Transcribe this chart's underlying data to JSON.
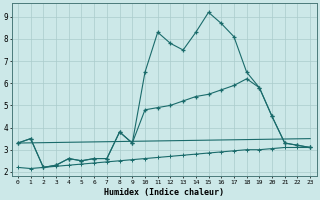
{
  "background_color": "#cce8e8",
  "grid_color": "#aacccc",
  "line_color": "#1a6b6b",
  "xlabel": "Humidex (Indice chaleur)",
  "xlim": [
    -0.5,
    23.5
  ],
  "ylim": [
    1.8,
    9.6
  ],
  "yticks": [
    2,
    3,
    4,
    5,
    6,
    7,
    8,
    9
  ],
  "xticks": [
    0,
    1,
    2,
    3,
    4,
    5,
    6,
    7,
    8,
    9,
    10,
    11,
    12,
    13,
    14,
    15,
    16,
    17,
    18,
    19,
    20,
    21,
    22,
    23
  ],
  "series1_x": [
    0,
    1,
    2,
    3,
    4,
    5,
    6,
    7,
    8,
    9,
    10,
    11,
    12,
    13,
    14,
    15,
    16,
    17,
    18,
    19,
    20,
    21,
    22,
    23
  ],
  "series1_y": [
    3.3,
    3.5,
    2.2,
    2.3,
    2.6,
    2.5,
    2.6,
    2.6,
    3.8,
    3.3,
    6.5,
    8.3,
    7.8,
    7.5,
    8.3,
    9.2,
    8.7,
    8.1,
    6.5,
    5.8,
    4.5,
    3.3,
    3.2,
    3.1
  ],
  "series2_x": [
    0,
    1,
    2,
    3,
    4,
    5,
    6,
    7,
    8,
    9,
    10,
    11,
    12,
    13,
    14,
    15,
    16,
    17,
    18,
    19,
    20,
    21,
    22,
    23
  ],
  "series2_y": [
    3.3,
    3.5,
    2.2,
    2.3,
    2.6,
    2.5,
    2.6,
    2.6,
    3.8,
    3.3,
    4.8,
    4.9,
    5.0,
    5.2,
    5.4,
    5.5,
    5.7,
    5.9,
    6.2,
    5.8,
    4.5,
    3.3,
    3.2,
    3.1
  ],
  "series3_x": [
    0,
    23
  ],
  "series3_y": [
    3.3,
    3.5
  ],
  "series4_x": [
    0,
    1,
    2,
    3,
    4,
    5,
    6,
    7,
    8,
    9,
    10,
    11,
    12,
    13,
    14,
    15,
    16,
    17,
    18,
    19,
    20,
    21,
    22,
    23
  ],
  "series4_y": [
    2.2,
    2.15,
    2.2,
    2.25,
    2.3,
    2.35,
    2.4,
    2.45,
    2.5,
    2.55,
    2.6,
    2.65,
    2.7,
    2.75,
    2.8,
    2.85,
    2.9,
    2.95,
    3.0,
    3.0,
    3.05,
    3.1,
    3.1,
    3.1
  ]
}
